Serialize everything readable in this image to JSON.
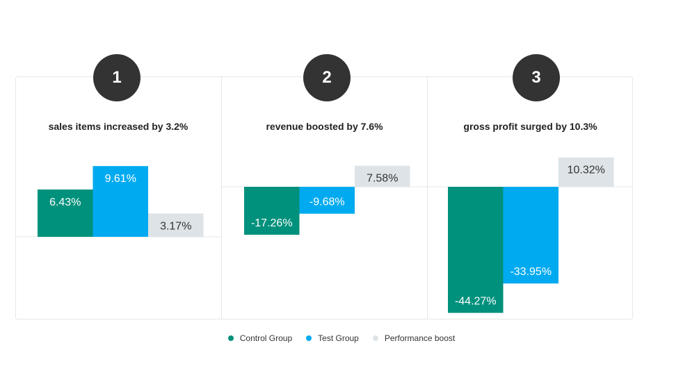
{
  "panels": [
    {
      "number": "1",
      "title": "sales items increased by 3.2%"
    },
    {
      "number": "2",
      "title": "revenue boosted by 7.6%"
    },
    {
      "number": "3",
      "title": "gross profit surged by 10.3%"
    }
  ],
  "legend": [
    {
      "label": "Control Group",
      "color": "#00917c"
    },
    {
      "label": "Test Group",
      "color": "#00aaf0"
    },
    {
      "label": "Performance boost",
      "color": "#dde3e6"
    }
  ],
  "chart_data": [
    {
      "type": "bar",
      "title": "sales items increased by 3.2%",
      "categories": [
        "Control Group",
        "Test Group",
        "Performance boost"
      ],
      "values": [
        6.43,
        9.61,
        3.17
      ],
      "labels": [
        "6.43%",
        "9.61%",
        "3.17%"
      ],
      "colors": [
        "#00917c",
        "#00aaf0",
        "#dde3e6"
      ]
    },
    {
      "type": "bar",
      "title": "revenue boosted by 7.6%",
      "categories": [
        "Control Group",
        "Test Group",
        "Performance boost"
      ],
      "values": [
        -17.26,
        -9.68,
        7.58
      ],
      "labels": [
        "-17.26%",
        "-9.68%",
        "7.58%"
      ],
      "colors": [
        "#00917c",
        "#00aaf0",
        "#dde3e6"
      ]
    },
    {
      "type": "bar",
      "title": "gross profit surged by 10.3%",
      "categories": [
        "Control Group",
        "Test Group",
        "Performance boost"
      ],
      "values": [
        -44.27,
        -33.95,
        10.32
      ],
      "labels": [
        "-44.27%",
        "-33.95%",
        "10.32%"
      ],
      "colors": [
        "#00917c",
        "#00aaf0",
        "#dde3e6"
      ]
    }
  ]
}
